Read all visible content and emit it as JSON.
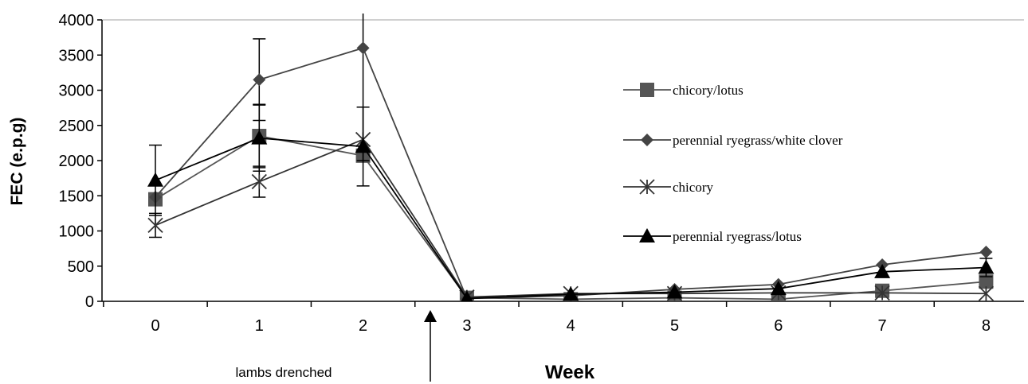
{
  "chart_data": {
    "type": "line",
    "xlabel": "Week",
    "ylabel": "FEC (e.p.g)",
    "x": [
      0,
      1,
      2,
      3,
      4,
      5,
      6,
      7,
      8
    ],
    "x_tick_labels": [
      "0",
      "1",
      "2",
      "3",
      "4",
      "5",
      "6",
      "7",
      "8"
    ],
    "ylim": [
      0,
      4000
    ],
    "y_ticks": [
      0,
      500,
      1000,
      1500,
      2000,
      2500,
      3000,
      3500,
      4000
    ],
    "grid": "horizontal line at top only",
    "legend_position": "right",
    "annotation": "lambs drenched",
    "series": [
      {
        "name": "chicory/lotus",
        "marker": "square",
        "color": "#555555",
        "values": [
          1450,
          2350,
          2070,
          50,
          30,
          50,
          30,
          150,
          280
        ],
        "error": [
          null,
          450,
          null,
          null,
          null,
          null,
          null,
          null,
          null
        ]
      },
      {
        "name": "perennial ryegrass/white clover",
        "marker": "diamond",
        "color": "#444444",
        "values": [
          1480,
          3150,
          3600,
          40,
          80,
          170,
          240,
          520,
          700
        ],
        "error": [
          null,
          580,
          1600,
          null,
          null,
          null,
          null,
          null,
          null
        ]
      },
      {
        "name": "chicory",
        "marker": "asterisk",
        "color": "#333333",
        "values": [
          1080,
          1700,
          2300,
          60,
          110,
          110,
          120,
          120,
          110
        ],
        "error": [
          170,
          220,
          null,
          null,
          null,
          null,
          null,
          null,
          null
        ]
      },
      {
        "name": "perennial ryegrass/lotus",
        "marker": "triangle",
        "color": "#000000",
        "values": [
          1720,
          2320,
          2200,
          40,
          100,
          130,
          180,
          420,
          480
        ],
        "error": [
          500,
          470,
          560,
          null,
          null,
          null,
          null,
          null,
          130
        ]
      }
    ]
  }
}
